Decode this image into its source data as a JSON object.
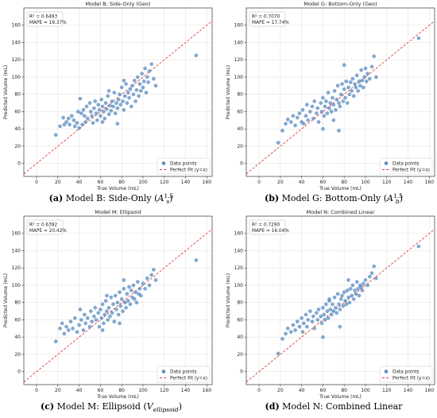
{
  "chart_data": [
    {
      "type": "scatter",
      "title": "Model B: Side-Only (Geo)",
      "xlabel": "True Volume (mL)",
      "ylabel": "Predicted Volume (mL)",
      "xlim": [
        -12,
        165
      ],
      "ylim": [
        -15,
        180
      ],
      "xticks": [
        "0",
        "20",
        "40",
        "60",
        "80",
        "100",
        "120",
        "140",
        "160"
      ],
      "yticks": [
        "0",
        "20",
        "40",
        "60",
        "80",
        "100",
        "120",
        "140",
        "160"
      ],
      "stats": [
        "R² = 0.6493",
        "MAPE = 19.37%"
      ],
      "legend": [
        "Data points",
        "Perfect Fit (y=x)"
      ],
      "legend_position": "bottom-right",
      "caption_label": "(a)",
      "caption_text": "Model B: Side-Only",
      "caption_math": {
        "base": "A",
        "sub": "s",
        "sup": "1.5"
      },
      "points": [
        [
          18,
          33
        ],
        [
          22,
          43
        ],
        [
          25,
          53
        ],
        [
          26,
          45
        ],
        [
          28,
          48
        ],
        [
          30,
          52
        ],
        [
          31,
          45
        ],
        [
          33,
          55
        ],
        [
          35,
          50
        ],
        [
          36,
          43
        ],
        [
          38,
          47
        ],
        [
          39,
          60
        ],
        [
          40,
          41
        ],
        [
          41,
          75
        ],
        [
          42,
          58
        ],
        [
          43,
          45
        ],
        [
          44,
          62
        ],
        [
          45,
          55
        ],
        [
          46,
          48
        ],
        [
          47,
          66
        ],
        [
          48,
          52
        ],
        [
          50,
          70
        ],
        [
          51,
          60
        ],
        [
          52,
          55
        ],
        [
          53,
          47
        ],
        [
          54,
          64
        ],
        [
          55,
          72
        ],
        [
          56,
          58
        ],
        [
          57,
          50
        ],
        [
          58,
          68
        ],
        [
          59,
          62
        ],
        [
          60,
          55
        ],
        [
          61,
          74
        ],
        [
          62,
          66
        ],
        [
          63,
          60
        ],
        [
          64,
          52
        ],
        [
          65,
          70
        ],
        [
          66,
          63
        ],
        [
          67,
          78
        ],
        [
          68,
          57
        ],
        [
          69,
          67
        ],
        [
          70,
          61
        ],
        [
          71,
          72
        ],
        [
          72,
          66
        ],
        [
          73,
          82
        ],
        [
          74,
          58
        ],
        [
          75,
          70
        ],
        [
          76,
          64
        ],
        [
          77,
          74
        ],
        [
          78,
          80
        ],
        [
          79,
          68
        ],
        [
          80,
          88
        ],
        [
          81,
          72
        ],
        [
          82,
          62
        ],
        [
          83,
          78
        ],
        [
          84,
          92
        ],
        [
          85,
          70
        ],
        [
          86,
          82
        ],
        [
          87,
          76
        ],
        [
          88,
          86
        ],
        [
          89,
          66
        ],
        [
          90,
          90
        ],
        [
          91,
          80
        ],
        [
          92,
          96
        ],
        [
          93,
          72
        ],
        [
          94,
          85
        ],
        [
          95,
          100
        ],
        [
          96,
          78
        ],
        [
          97,
          92
        ],
        [
          98,
          84
        ],
        [
          99,
          104
        ],
        [
          100,
          88
        ],
        [
          101,
          95
        ],
        [
          102,
          110
        ],
        [
          103,
          82
        ],
        [
          104,
          100
        ],
        [
          105,
          94
        ],
        [
          106,
          107
        ],
        [
          108,
          115
        ],
        [
          110,
          98
        ],
        [
          112,
          90
        ],
        [
          76,
          46
        ],
        [
          62,
          48
        ],
        [
          82,
          96
        ],
        [
          68,
          84
        ],
        [
          150,
          125
        ]
      ]
    },
    {
      "type": "scatter",
      "title": "Model G: Bottom-Only (Geo)",
      "xlabel": "True Volume (mL)",
      "ylabel": "Predicted Volume (mL)",
      "xlim": [
        -12,
        165
      ],
      "ylim": [
        -15,
        180
      ],
      "xticks": [
        "0",
        "20",
        "40",
        "60",
        "80",
        "100",
        "120",
        "140",
        "160"
      ],
      "yticks": [
        "0",
        "20",
        "40",
        "60",
        "80",
        "100",
        "120",
        "140",
        "160"
      ],
      "stats": [
        "R² = 0.7070",
        "MAPE = 17.74%"
      ],
      "legend": [
        "Data points",
        "Perfect Fit (y=x)"
      ],
      "legend_position": "bottom-right",
      "caption_label": "(b)",
      "caption_text": "Model G: Bottom-Only",
      "caption_math": {
        "base": "A",
        "sub": "b",
        "sup": "1.5"
      },
      "points": [
        [
          18,
          24
        ],
        [
          22,
          38
        ],
        [
          25,
          46
        ],
        [
          27,
          51
        ],
        [
          30,
          48
        ],
        [
          32,
          55
        ],
        [
          34,
          44
        ],
        [
          36,
          53
        ],
        [
          38,
          58
        ],
        [
          40,
          48
        ],
        [
          41,
          62
        ],
        [
          42,
          46
        ],
        [
          44,
          55
        ],
        [
          45,
          68
        ],
        [
          46,
          50
        ],
        [
          48,
          60
        ],
        [
          50,
          66
        ],
        [
          51,
          52
        ],
        [
          52,
          72
        ],
        [
          54,
          58
        ],
        [
          55,
          64
        ],
        [
          56,
          48
        ],
        [
          58,
          70
        ],
        [
          59,
          60
        ],
        [
          60,
          76
        ],
        [
          61,
          55
        ],
        [
          62,
          66
        ],
        [
          63,
          72
        ],
        [
          64,
          58
        ],
        [
          65,
          82
        ],
        [
          66,
          64
        ],
        [
          67,
          70
        ],
        [
          68,
          60
        ],
        [
          69,
          76
        ],
        [
          70,
          68
        ],
        [
          71,
          84
        ],
        [
          72,
          62
        ],
        [
          73,
          74
        ],
        [
          74,
          90
        ],
        [
          75,
          70
        ],
        [
          76,
          66
        ],
        [
          77,
          80
        ],
        [
          78,
          92
        ],
        [
          79,
          72
        ],
        [
          80,
          86
        ],
        [
          81,
          76
        ],
        [
          82,
          95
        ],
        [
          83,
          70
        ],
        [
          84,
          88
        ],
        [
          85,
          80
        ],
        [
          86,
          94
        ],
        [
          87,
          84
        ],
        [
          88,
          98
        ],
        [
          89,
          78
        ],
        [
          90,
          92
        ],
        [
          91,
          88
        ],
        [
          92,
          102
        ],
        [
          93,
          84
        ],
        [
          94,
          95
        ],
        [
          95,
          90
        ],
        [
          96,
          108
        ],
        [
          97,
          96
        ],
        [
          98,
          88
        ],
        [
          99,
          100
        ],
        [
          100,
          110
        ],
        [
          101,
          95
        ],
        [
          102,
          104
        ],
        [
          104,
          98
        ],
        [
          106,
          112
        ],
        [
          108,
          124
        ],
        [
          110,
          100
        ],
        [
          75,
          38
        ],
        [
          60,
          40
        ],
        [
          80,
          114
        ],
        [
          70,
          50
        ],
        [
          150,
          145
        ]
      ]
    },
    {
      "type": "scatter",
      "title": "Model M: Ellipsoid",
      "xlabel": "True Volume (mL)",
      "ylabel": "Predicted Volume (mL)",
      "xlim": [
        -12,
        165
      ],
      "ylim": [
        -15,
        180
      ],
      "xticks": [
        "0",
        "20",
        "40",
        "60",
        "80",
        "100",
        "120",
        "140",
        "160"
      ],
      "yticks": [
        "0",
        "20",
        "40",
        "60",
        "80",
        "100",
        "120",
        "140",
        "160"
      ],
      "stats": [
        "R² = 0.6392",
        "MAPE = 20.42%"
      ],
      "legend": [
        "Data points",
        "Perfect Fit (y=x)"
      ],
      "legend_position": "bottom-right",
      "caption_label": "(c)",
      "caption_text": "Model M: Ellipsoid",
      "caption_math": {
        "base": "V",
        "sub": "ellipsoid",
        "sup": ""
      },
      "points": [
        [
          18,
          35
        ],
        [
          22,
          50
        ],
        [
          24,
          56
        ],
        [
          26,
          44
        ],
        [
          28,
          52
        ],
        [
          30,
          48
        ],
        [
          32,
          58
        ],
        [
          34,
          50
        ],
        [
          36,
          62
        ],
        [
          38,
          46
        ],
        [
          40,
          54
        ],
        [
          41,
          72
        ],
        [
          42,
          60
        ],
        [
          44,
          48
        ],
        [
          45,
          66
        ],
        [
          46,
          56
        ],
        [
          48,
          62
        ],
        [
          50,
          52
        ],
        [
          51,
          70
        ],
        [
          52,
          58
        ],
        [
          54,
          64
        ],
        [
          55,
          74
        ],
        [
          56,
          60
        ],
        [
          58,
          68
        ],
        [
          59,
          52
        ],
        [
          60,
          72
        ],
        [
          61,
          62
        ],
        [
          62,
          78
        ],
        [
          63,
          56
        ],
        [
          64,
          66
        ],
        [
          65,
          82
        ],
        [
          66,
          70
        ],
        [
          67,
          60
        ],
        [
          68,
          74
        ],
        [
          69,
          64
        ],
        [
          70,
          86
        ],
        [
          71,
          68
        ],
        [
          72,
          78
        ],
        [
          73,
          58
        ],
        [
          74,
          88
        ],
        [
          75,
          72
        ],
        [
          76,
          80
        ],
        [
          77,
          66
        ],
        [
          78,
          92
        ],
        [
          79,
          76
        ],
        [
          80,
          84
        ],
        [
          81,
          70
        ],
        [
          82,
          96
        ],
        [
          83,
          80
        ],
        [
          84,
          74
        ],
        [
          85,
          90
        ],
        [
          86,
          82
        ],
        [
          87,
          98
        ],
        [
          88,
          78
        ],
        [
          89,
          94
        ],
        [
          90,
          86
        ],
        [
          91,
          100
        ],
        [
          92,
          84
        ],
        [
          93,
          92
        ],
        [
          94,
          80
        ],
        [
          95,
          104
        ],
        [
          96,
          90
        ],
        [
          97,
          96
        ],
        [
          98,
          88
        ],
        [
          100,
          102
        ],
        [
          102,
          96
        ],
        [
          104,
          108
        ],
        [
          106,
          100
        ],
        [
          108,
          112
        ],
        [
          110,
          118
        ],
        [
          112,
          106
        ],
        [
          62,
          48
        ],
        [
          78,
          56
        ],
        [
          82,
          106
        ],
        [
          66,
          88
        ],
        [
          150,
          129
        ]
      ]
    },
    {
      "type": "scatter",
      "title": "Model N: Combined Linear",
      "xlabel": "True Volume (mL)",
      "ylabel": "Predicted Volume (mL)",
      "xlim": [
        -12,
        165
      ],
      "ylim": [
        -15,
        180
      ],
      "xticks": [
        "0",
        "20",
        "40",
        "60",
        "80",
        "100",
        "120",
        "140",
        "160"
      ],
      "yticks": [
        "0",
        "20",
        "40",
        "60",
        "80",
        "100",
        "120",
        "140",
        "160"
      ],
      "stats": [
        "R² = 0.7290",
        "MAPE = 16.04%"
      ],
      "legend": [
        "Data points",
        "Perfect Fit (y=x)"
      ],
      "legend_position": "bottom-right",
      "caption_label": "(d)",
      "caption_text": "Model N: Combined Linear",
      "caption_math": null,
      "points": [
        [
          18,
          21
        ],
        [
          22,
          38
        ],
        [
          25,
          44
        ],
        [
          27,
          50
        ],
        [
          30,
          46
        ],
        [
          32,
          54
        ],
        [
          34,
          48
        ],
        [
          36,
          58
        ],
        [
          38,
          52
        ],
        [
          40,
          62
        ],
        [
          41,
          46
        ],
        [
          42,
          56
        ],
        [
          44,
          66
        ],
        [
          45,
          52
        ],
        [
          46,
          60
        ],
        [
          48,
          70
        ],
        [
          50,
          58
        ],
        [
          51,
          64
        ],
        [
          52,
          50
        ],
        [
          54,
          68
        ],
        [
          55,
          60
        ],
        [
          56,
          72
        ],
        [
          58,
          64
        ],
        [
          59,
          56
        ],
        [
          60,
          74
        ],
        [
          61,
          66
        ],
        [
          62,
          60
        ],
        [
          63,
          78
        ],
        [
          64,
          70
        ],
        [
          65,
          62
        ],
        [
          66,
          82
        ],
        [
          67,
          72
        ],
        [
          68,
          66
        ],
        [
          69,
          78
        ],
        [
          70,
          70
        ],
        [
          71,
          86
        ],
        [
          72,
          74
        ],
        [
          73,
          68
        ],
        [
          74,
          90
        ],
        [
          75,
          78
        ],
        [
          76,
          72
        ],
        [
          77,
          84
        ],
        [
          78,
          88
        ],
        [
          79,
          76
        ],
        [
          80,
          92
        ],
        [
          81,
          82
        ],
        [
          82,
          78
        ],
        [
          83,
          94
        ],
        [
          84,
          86
        ],
        [
          85,
          80
        ],
        [
          86,
          96
        ],
        [
          87,
          88
        ],
        [
          88,
          100
        ],
        [
          89,
          84
        ],
        [
          90,
          94
        ],
        [
          91,
          90
        ],
        [
          92,
          104
        ],
        [
          93,
          96
        ],
        [
          94,
          88
        ],
        [
          95,
          100
        ],
        [
          96,
          98
        ],
        [
          97,
          94
        ],
        [
          98,
          102
        ],
        [
          100,
          106
        ],
        [
          102,
          100
        ],
        [
          104,
          110
        ],
        [
          106,
          114
        ],
        [
          108,
          122
        ],
        [
          110,
          108
        ],
        [
          60,
          40
        ],
        [
          76,
          52
        ],
        [
          84,
          106
        ],
        [
          66,
          84
        ],
        [
          150,
          145
        ]
      ]
    }
  ]
}
